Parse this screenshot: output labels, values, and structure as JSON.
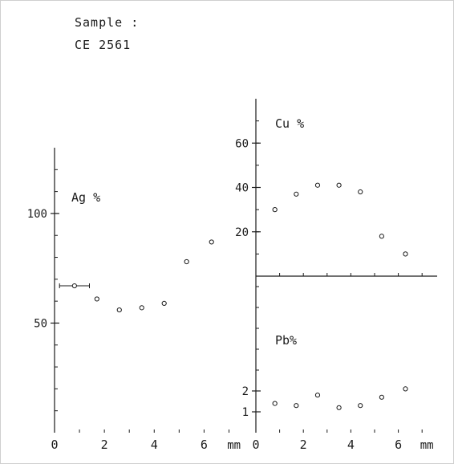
{
  "sample": {
    "label": "Sample :",
    "id": "CE 2561"
  },
  "chart_data": [
    {
      "type": "scatter",
      "title": "Ag %",
      "xlabel": "mm",
      "x_ticks": [
        "0",
        "2",
        "4",
        "6"
      ],
      "y_ticks": [
        "50",
        "100"
      ],
      "xlim": [
        0,
        7.5
      ],
      "ylim": [
        0,
        130
      ],
      "series": [
        {
          "x": [
            0.8,
            1.7,
            2.6,
            3.5,
            4.4,
            5.3,
            6.3
          ],
          "y": [
            67,
            61,
            56,
            57,
            59,
            78,
            87
          ]
        }
      ],
      "error_bars": [
        {
          "x": 0.8,
          "y": 67,
          "x_err": 0.6
        }
      ]
    },
    {
      "type": "scatter",
      "title": "Cu %",
      "xlabel": "",
      "x_ticks": [],
      "y_ticks": [
        "20",
        "40",
        "60"
      ],
      "xlim": [
        0,
        7.5
      ],
      "ylim": [
        0,
        80
      ],
      "series": [
        {
          "x": [
            0.8,
            1.7,
            2.6,
            3.5,
            4.4,
            5.3,
            6.3
          ],
          "y": [
            30,
            37,
            41,
            41,
            38,
            18,
            10
          ]
        }
      ]
    },
    {
      "type": "scatter",
      "title": "Pb%",
      "xlabel": "mm",
      "x_ticks": [
        "0",
        "2",
        "4",
        "6"
      ],
      "y_ticks": [
        "1",
        "2"
      ],
      "xlim": [
        0,
        7.5
      ],
      "ylim": [
        0,
        7.5
      ],
      "series": [
        {
          "x": [
            0.8,
            1.7,
            2.6,
            3.5,
            4.4,
            5.3,
            6.3
          ],
          "y": [
            1.4,
            1.3,
            1.8,
            1.2,
            1.3,
            1.7,
            2.1
          ]
        }
      ]
    }
  ]
}
